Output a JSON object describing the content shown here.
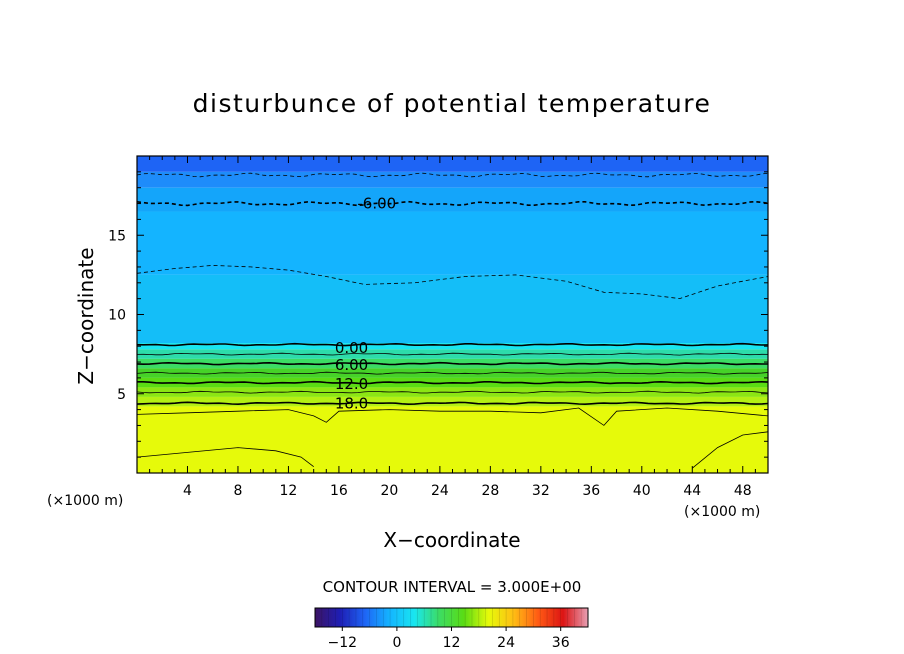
{
  "chart_data": {
    "type": "contour",
    "title": "disturbunce of potential temperature",
    "xlabel": "X−coordinate",
    "ylabel": "Z−coordinate",
    "x_unit_left": "(×1000 m)",
    "x_unit_right": "(×1000 m)",
    "xlim": [
      0,
      50
    ],
    "ylim": [
      0,
      20
    ],
    "x_ticks": [
      4,
      8,
      12,
      16,
      20,
      24,
      28,
      32,
      36,
      40,
      44,
      48
    ],
    "y_ticks": [
      5,
      10,
      15
    ],
    "contour_interval_text": "CONTOUR INTERVAL = 3.000E+00",
    "contour_labels": [
      {
        "text": "-6.00",
        "x": 19,
        "y": 17.0
      },
      {
        "text": "0.00",
        "x": 17,
        "y": 7.9
      },
      {
        "text": "6.00",
        "x": 17,
        "y": 6.8
      },
      {
        "text": "12.0",
        "x": 17,
        "y": 5.6
      },
      {
        "text": "18.0",
        "x": 17,
        "y": 4.4
      }
    ],
    "horizontal_contours": [
      {
        "value": -6,
        "z": 18.8,
        "dashed": true,
        "bold": false
      },
      {
        "value": -6,
        "z": 17.0,
        "dashed": true,
        "bold": true
      },
      {
        "value": 0,
        "z": 8.1,
        "dashed": false,
        "bold": true
      },
      {
        "value": 3,
        "z": 7.5,
        "dashed": false,
        "bold": false
      },
      {
        "value": 6,
        "z": 6.9,
        "dashed": false,
        "bold": true
      },
      {
        "value": 9,
        "z": 6.3,
        "dashed": false,
        "bold": false
      },
      {
        "value": 12,
        "z": 5.7,
        "dashed": false,
        "bold": true
      },
      {
        "value": 15,
        "z": 5.1,
        "dashed": false,
        "bold": false
      },
      {
        "value": 18,
        "z": 4.4,
        "dashed": false,
        "bold": true
      }
    ],
    "fill_bands": [
      {
        "z0": 19.0,
        "z1": 20.0,
        "color": "#1e64f5"
      },
      {
        "z0": 18.0,
        "z1": 19.0,
        "color": "#1e8cfa"
      },
      {
        "z0": 16.5,
        "z1": 18.0,
        "color": "#14a5fa"
      },
      {
        "z0": 12.5,
        "z1": 16.5,
        "color": "#14b4ff"
      },
      {
        "z0": 8.2,
        "z1": 12.5,
        "color": "#14bef8"
      },
      {
        "z0": 7.8,
        "z1": 8.2,
        "color": "#19e6f0"
      },
      {
        "z0": 7.2,
        "z1": 7.8,
        "color": "#2ddcaa"
      },
      {
        "z0": 6.6,
        "z1": 7.2,
        "color": "#3cdc64"
      },
      {
        "z0": 6.0,
        "z1": 6.6,
        "color": "#46d228"
      },
      {
        "z0": 5.4,
        "z1": 6.0,
        "color": "#5adc14"
      },
      {
        "z0": 4.8,
        "z1": 5.4,
        "color": "#8ce614"
      },
      {
        "z0": 4.2,
        "z1": 4.8,
        "color": "#b4f014"
      },
      {
        "z0": 0.0,
        "z1": 4.2,
        "color": "#e6fa0a"
      }
    ],
    "colorbar": {
      "min": -18,
      "max": 42,
      "ticks": [
        -12,
        0,
        12,
        24,
        36
      ],
      "tick_labels": [
        "−12",
        "0",
        "12",
        "24",
        "36"
      ],
      "stops": [
        "#3c1464",
        "#1e1eb4",
        "#1e64f5",
        "#14b4ff",
        "#19e6f0",
        "#3cdc64",
        "#5adc14",
        "#e6fa0a",
        "#ffbe14",
        "#ff5a14",
        "#dc1414",
        "#e6a0b4"
      ]
    }
  }
}
